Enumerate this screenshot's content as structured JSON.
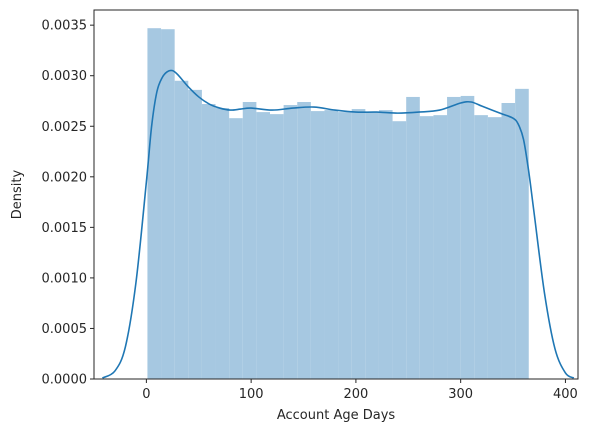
{
  "chart_data": {
    "type": "bar",
    "subtype": "histogram-with-kde",
    "title": "",
    "xlabel": "Account Age Days",
    "ylabel": "Density",
    "xlim": [
      -50,
      412
    ],
    "ylim": [
      0,
      0.00365
    ],
    "xticks": [
      0,
      100,
      200,
      300,
      400
    ],
    "xtick_labels": [
      "0",
      "100",
      "200",
      "300",
      "400"
    ],
    "yticks": [
      0,
      0.0005,
      0.001,
      0.0015,
      0.002,
      0.0025,
      0.003,
      0.0035
    ],
    "ytick_labels": [
      "0.0000",
      "0.0005",
      "0.0010",
      "0.0015",
      "0.0020",
      "0.0025",
      "0.0030",
      "0.0035"
    ],
    "grid": false,
    "legend": "none",
    "colors": {
      "bars": "#a6c8e1",
      "kde": "#1f77b4",
      "axes": "#262626"
    },
    "histogram": {
      "bin_start": 1,
      "bin_width": 13,
      "values": [
        0.00347,
        0.00346,
        0.00295,
        0.00286,
        0.00272,
        0.00268,
        0.00258,
        0.00274,
        0.00264,
        0.00262,
        0.00271,
        0.00274,
        0.00265,
        0.00266,
        0.00264,
        0.00267,
        0.00264,
        0.00266,
        0.00255,
        0.00279,
        0.0026,
        0.00261,
        0.00279,
        0.0028,
        0.00261,
        0.00259,
        0.00273,
        0.00287
      ]
    },
    "kde": {
      "x": [
        -42,
        -30,
        -20,
        -10,
        0,
        5,
        10,
        15,
        20,
        25,
        30,
        40,
        50,
        60,
        70,
        80,
        90,
        100,
        120,
        140,
        160,
        180,
        200,
        220,
        240,
        260,
        280,
        300,
        310,
        320,
        330,
        340,
        350,
        355,
        360,
        365,
        370,
        380,
        390,
        400,
        408
      ],
      "y": [
        1e-05,
        8e-05,
        0.00032,
        0.00095,
        0.00195,
        0.0025,
        0.00284,
        0.00298,
        0.00304,
        0.00305,
        0.00301,
        0.00289,
        0.00279,
        0.00272,
        0.00268,
        0.00266,
        0.00267,
        0.00268,
        0.00266,
        0.00268,
        0.00269,
        0.00266,
        0.00264,
        0.00264,
        0.00263,
        0.00264,
        0.00266,
        0.00273,
        0.00274,
        0.0027,
        0.00266,
        0.00262,
        0.00258,
        0.00252,
        0.00237,
        0.00205,
        0.00165,
        0.00085,
        0.0003,
        6e-05,
        1e-05
      ]
    }
  }
}
